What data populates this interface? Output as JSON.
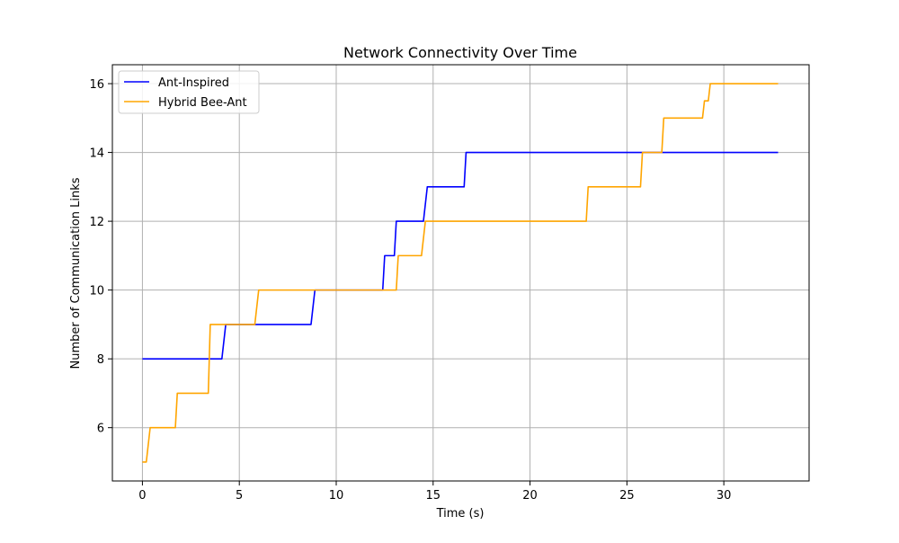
{
  "chart_data": {
    "type": "line",
    "title": "Network Connectivity Over Time",
    "xlabel": "Time (s)",
    "ylabel": "Number of Communication Links",
    "xlim": [
      -1.55,
      34.4
    ],
    "ylim": [
      4.45,
      16.55
    ],
    "xticks": [
      0,
      5,
      10,
      15,
      20,
      25,
      30
    ],
    "yticks": [
      6,
      8,
      10,
      12,
      14,
      16
    ],
    "grid": true,
    "legend_position": "top-left",
    "series": [
      {
        "name": "Ant-Inspired",
        "color": "#0000ff",
        "points": [
          [
            0,
            8
          ],
          [
            4.1,
            8
          ],
          [
            4.3,
            9
          ],
          [
            8.7,
            9
          ],
          [
            8.9,
            10
          ],
          [
            12.4,
            10
          ],
          [
            12.5,
            11
          ],
          [
            13.0,
            11
          ],
          [
            13.1,
            12
          ],
          [
            14.5,
            12
          ],
          [
            14.7,
            13
          ],
          [
            16.6,
            13
          ],
          [
            16.7,
            14
          ],
          [
            32.8,
            14
          ]
        ]
      },
      {
        "name": "Hybrid Bee-Ant",
        "color": "#ffa500",
        "points": [
          [
            0,
            5
          ],
          [
            0.2,
            5
          ],
          [
            0.4,
            6
          ],
          [
            1.7,
            6
          ],
          [
            1.8,
            7
          ],
          [
            3.4,
            7
          ],
          [
            3.5,
            9
          ],
          [
            5.8,
            9
          ],
          [
            6.0,
            10
          ],
          [
            13.1,
            10
          ],
          [
            13.2,
            11
          ],
          [
            14.4,
            11
          ],
          [
            14.6,
            12
          ],
          [
            22.9,
            12
          ],
          [
            23.0,
            13
          ],
          [
            25.7,
            13
          ],
          [
            25.8,
            14
          ],
          [
            26.8,
            14
          ],
          [
            26.9,
            15
          ],
          [
            28.9,
            15
          ],
          [
            29.0,
            15.5
          ],
          [
            29.2,
            15.5
          ],
          [
            29.3,
            16
          ],
          [
            32.8,
            16
          ]
        ]
      }
    ]
  }
}
